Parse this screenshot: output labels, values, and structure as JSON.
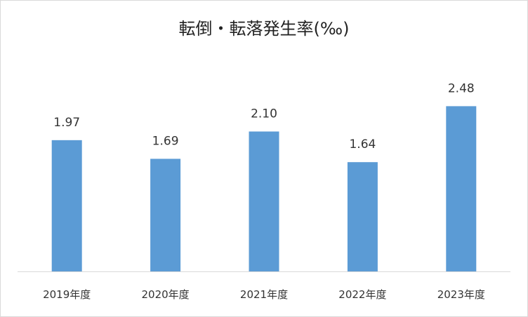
{
  "chart_data": {
    "type": "bar",
    "title": "転倒・転落発生率(‰)",
    "categories": [
      "2019年度",
      "2020年度",
      "2021年度",
      "2022年度",
      "2023年度"
    ],
    "values": [
      1.97,
      1.69,
      2.1,
      1.64,
      2.48
    ],
    "value_labels": [
      "1.97",
      "1.69",
      "2.10",
      "1.64",
      "2.48"
    ],
    "xlabel": "",
    "ylabel": "",
    "ylim": [
      0,
      3
    ],
    "grid": false,
    "legend": "none",
    "bar_color": "#5b9bd5",
    "axis_color": "#d9d9d9"
  }
}
